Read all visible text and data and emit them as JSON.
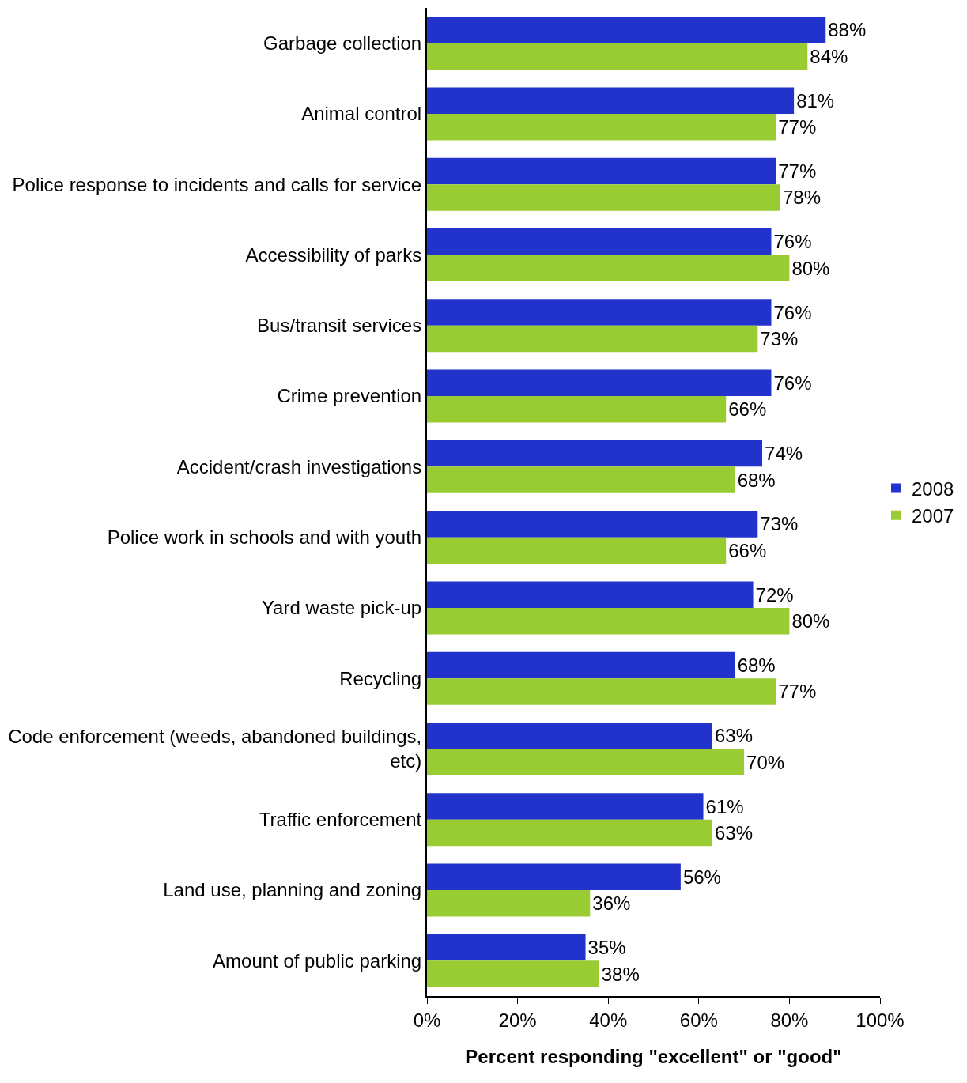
{
  "chart_data": {
    "type": "bar",
    "orientation": "horizontal",
    "xlabel": "Percent responding \"excellent\" or \"good\"",
    "categories": [
      "Garbage collection",
      "Animal control",
      "Police response to incidents and calls for service",
      "Accessibility of parks",
      "Bus/transit services",
      "Crime prevention",
      "Accident/crash investigations",
      "Police work in schools and with youth",
      "Yard waste pick-up",
      "Recycling",
      "Code enforcement (weeds, abandoned buildings,\netc)",
      "Traffic enforcement",
      "Land use, planning and zoning",
      "Amount of public parking"
    ],
    "series": [
      {
        "name": "2008",
        "color": "#2233cc",
        "values": [
          88,
          81,
          77,
          76,
          76,
          76,
          74,
          73,
          72,
          68,
          63,
          61,
          56,
          35
        ],
        "value_labels": [
          "88%",
          "81%",
          "77%",
          "76%",
          "76%",
          "76%",
          "74%",
          "73%",
          "72%",
          "68%",
          "63%",
          "61%",
          "56%",
          "35%"
        ]
      },
      {
        "name": "2007",
        "color": "#99cc33",
        "values": [
          84,
          77,
          78,
          80,
          73,
          66,
          68,
          66,
          80,
          77,
          70,
          63,
          36,
          38
        ],
        "value_labels": [
          "84%",
          "77%",
          "78%",
          "80%",
          "73%",
          "66%",
          "68%",
          "66%",
          "80%",
          "77%",
          "70%",
          "63%",
          "36%",
          "38%"
        ]
      }
    ],
    "xlim": [
      0,
      100
    ],
    "xticks": [
      {
        "value": 0,
        "label": "0%"
      },
      {
        "value": 20,
        "label": "20%"
      },
      {
        "value": 40,
        "label": "40%"
      },
      {
        "value": 60,
        "label": "60%"
      },
      {
        "value": 80,
        "label": "80%"
      },
      {
        "value": 100,
        "label": "100%"
      }
    ],
    "legend": "right"
  }
}
